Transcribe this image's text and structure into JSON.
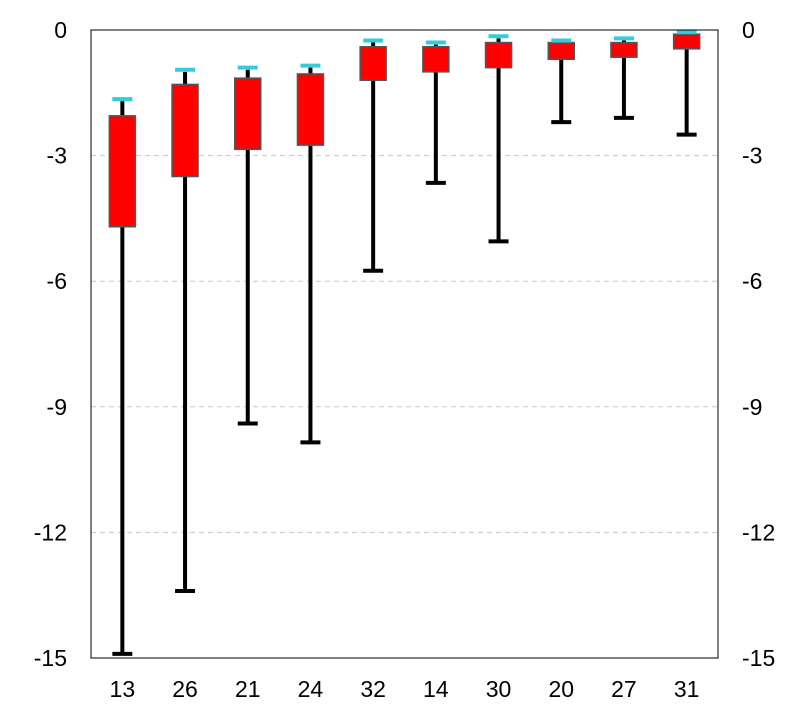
{
  "chart_data": {
    "type": "boxplot",
    "title": "",
    "xlabel": "",
    "ylabel": "",
    "categories": [
      "13",
      "26",
      "21",
      "24",
      "32",
      "14",
      "30",
      "20",
      "27",
      "31"
    ],
    "ylim": [
      -15,
      0
    ],
    "yticks": [
      0,
      -3,
      -6,
      -9,
      -12,
      -15
    ],
    "ytick_labels": [
      "0",
      "-3",
      "-6",
      "-9",
      "-12",
      "-15"
    ],
    "grid": true,
    "legend": "none",
    "boxes": [
      {
        "category": "13",
        "whisker_low": -14.9,
        "box_low": -4.7,
        "box_high": -2.05,
        "whisker_high": -1.7,
        "marker": -1.65
      },
      {
        "category": "26",
        "whisker_low": -13.4,
        "box_low": -3.5,
        "box_high": -1.3,
        "whisker_high": -1.0,
        "marker": -0.95
      },
      {
        "category": "21",
        "whisker_low": -9.4,
        "box_low": -2.85,
        "box_high": -1.15,
        "whisker_high": -0.95,
        "marker": -0.9
      },
      {
        "category": "24",
        "whisker_low": -9.85,
        "box_low": -2.75,
        "box_high": -1.05,
        "whisker_high": -0.9,
        "marker": -0.85
      },
      {
        "category": "32",
        "whisker_low": -5.75,
        "box_low": -1.2,
        "box_high": -0.4,
        "whisker_high": -0.3,
        "marker": -0.25
      },
      {
        "category": "14",
        "whisker_low": -3.65,
        "box_low": -1.0,
        "box_high": -0.4,
        "whisker_high": -0.35,
        "marker": -0.3
      },
      {
        "category": "30",
        "whisker_low": -5.05,
        "box_low": -0.9,
        "box_high": -0.3,
        "whisker_high": -0.2,
        "marker": -0.15
      },
      {
        "category": "20",
        "whisker_low": -2.2,
        "box_low": -0.7,
        "box_high": -0.3,
        "whisker_high": -0.25,
        "marker": -0.25
      },
      {
        "category": "27",
        "whisker_low": -2.1,
        "box_low": -0.65,
        "box_high": -0.3,
        "whisker_high": -0.25,
        "marker": -0.2
      },
      {
        "category": "31",
        "whisker_low": -2.5,
        "box_low": -0.45,
        "box_high": -0.1,
        "whisker_high": -0.1,
        "marker": -0.05
      }
    ],
    "colors": {
      "box_fill": "#ff0000",
      "box_stroke": "#555555",
      "whisker": "#000000",
      "marker": "#33ccdd",
      "grid": "#c8c8c8",
      "frame": "#000000"
    }
  }
}
